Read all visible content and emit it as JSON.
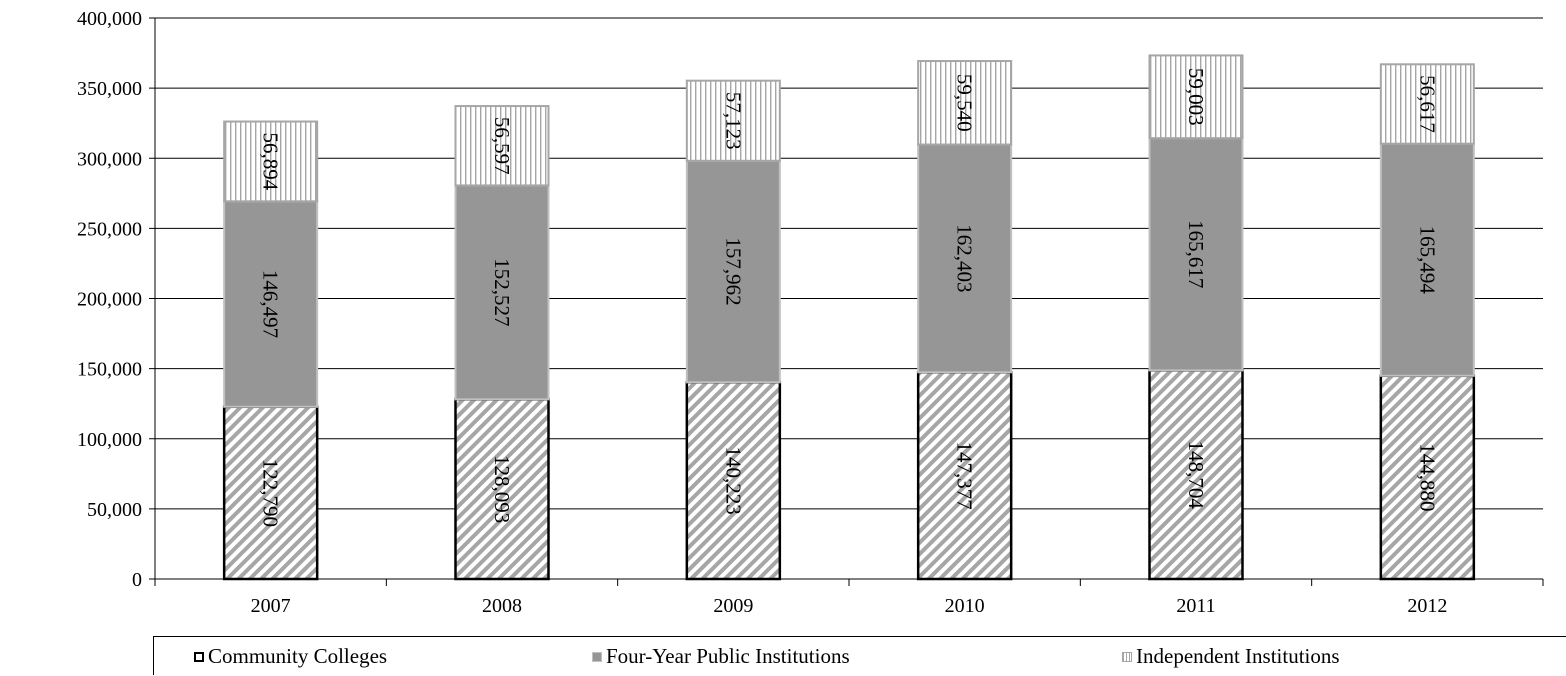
{
  "chart_data": {
    "type": "bar",
    "stacked": true,
    "categories": [
      "2007",
      "2008",
      "2009",
      "2010",
      "2011",
      "2012"
    ],
    "series": [
      {
        "name": "Community Colleges",
        "values": [
          122790,
          128093,
          140223,
          147377,
          148704,
          144880
        ],
        "labels": [
          "122,790",
          "128,093",
          "140,223",
          "147,377",
          "148,704",
          "144,880"
        ],
        "pattern": "diagonal-hatch",
        "border": "#000000"
      },
      {
        "name": "Four-Year Public Institutions",
        "values": [
          146497,
          152527,
          157962,
          162403,
          165617,
          165494
        ],
        "labels": [
          "146,497",
          "152,527",
          "157,962",
          "162,403",
          "165,617",
          "165,494"
        ],
        "pattern": "solid",
        "fill": "#969696",
        "border": "#c0c0c0"
      },
      {
        "name": "Independent Institutions",
        "values": [
          56894,
          56597,
          57123,
          59540,
          59003,
          56617
        ],
        "labels": [
          "56,894",
          "56,597",
          "57,123",
          "59,540",
          "59,003",
          "56,617"
        ],
        "pattern": "vertical-stripes",
        "border": "#a6a6a6"
      }
    ],
    "y_ticks": [
      "0",
      "50,000",
      "100,000",
      "150,000",
      "200,000",
      "250,000",
      "300,000",
      "350,000",
      "400,000"
    ],
    "ylim": [
      0,
      400000
    ],
    "y_step": 50000,
    "grid": true,
    "legend_position": "bottom",
    "title": "",
    "xlabel": "",
    "ylabel": ""
  }
}
